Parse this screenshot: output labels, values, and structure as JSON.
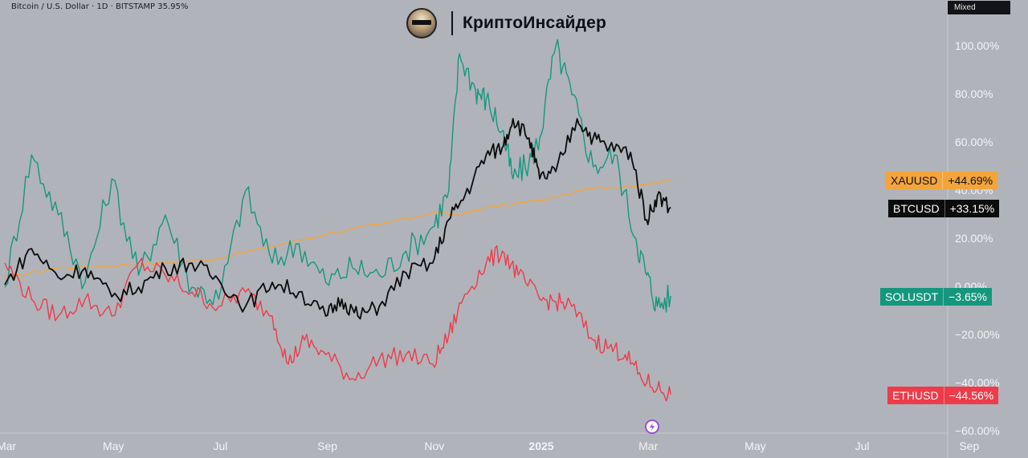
{
  "header": {
    "symbol_info": "Bitcoin / U.S. Dollar · 1D · BITSTAMP  35.95%",
    "scale_mode": "Mixed"
  },
  "brand": {
    "name": "КриптоИнсайдер",
    "logo_icon": "investor-portrait-logo-icon"
  },
  "colors": {
    "background": "#b1b3ba",
    "XAUUSD": "#f3a43b",
    "BTCUSD": "#0b0b0b",
    "SOLUSDT": "#15977e",
    "ETHUSD": "#ee3b49"
  },
  "chart_data": {
    "type": "line",
    "x_tick_labels": [
      "Mar",
      "May",
      "Jul",
      "Sep",
      "Nov",
      "2025",
      "Mar",
      "May",
      "Jul",
      "Sep"
    ],
    "y_tick_labels": [
      "100.00%",
      "80.00%",
      "60.00%",
      "40.00%",
      "20.00%",
      "0.00%",
      "−20.00%",
      "−40.00%",
      "−60.00%"
    ],
    "ylim": [
      -60,
      110
    ],
    "grid": false,
    "x_units": "months from 2024-03-01",
    "series": [
      {
        "name": "XAUUSD",
        "last_label": "+44.69%",
        "points": [
          [
            0,
            4
          ],
          [
            1,
            8
          ],
          [
            2,
            9
          ],
          [
            3,
            10
          ],
          [
            4,
            12
          ],
          [
            5,
            17
          ],
          [
            6,
            22
          ],
          [
            7,
            26
          ],
          [
            8,
            31
          ],
          [
            8.5,
            30
          ],
          [
            9,
            33
          ],
          [
            10,
            36
          ],
          [
            11,
            41
          ],
          [
            12,
            43
          ],
          [
            12.45,
            44.69
          ]
        ]
      },
      {
        "name": "BTCUSD",
        "last_label": "+33.15%",
        "points": [
          [
            0,
            1
          ],
          [
            0.5,
            16
          ],
          [
            1,
            4
          ],
          [
            1.5,
            8
          ],
          [
            2,
            -4
          ],
          [
            2.5,
            0
          ],
          [
            3,
            8
          ],
          [
            3.5,
            10
          ],
          [
            4,
            3
          ],
          [
            4.5,
            -8
          ],
          [
            5,
            2
          ],
          [
            5.5,
            -2
          ],
          [
            6,
            -12
          ],
          [
            6.3,
            -5
          ],
          [
            6.6,
            -12
          ],
          [
            7,
            -8
          ],
          [
            7.5,
            6
          ],
          [
            8,
            10
          ],
          [
            8.3,
            28
          ],
          [
            8.6,
            38
          ],
          [
            9,
            55
          ],
          [
            9.3,
            58
          ],
          [
            9.5,
            70
          ],
          [
            9.8,
            62
          ],
          [
            10,
            45
          ],
          [
            10.3,
            48
          ],
          [
            10.7,
            70
          ],
          [
            11,
            62
          ],
          [
            11.3,
            58
          ],
          [
            11.7,
            56
          ],
          [
            12,
            28
          ],
          [
            12.2,
            38
          ],
          [
            12.45,
            33.15
          ]
        ]
      },
      {
        "name": "SOLUSDT",
        "last_label": "−3.65%",
        "points": [
          [
            0,
            0
          ],
          [
            0.5,
            55
          ],
          [
            1,
            30
          ],
          [
            1.5,
            2
          ],
          [
            2,
            45
          ],
          [
            2.5,
            5
          ],
          [
            3,
            30
          ],
          [
            3.5,
            0
          ],
          [
            4,
            -5
          ],
          [
            4.5,
            40
          ],
          [
            5,
            10
          ],
          [
            5.5,
            18
          ],
          [
            6,
            2
          ],
          [
            6.5,
            8
          ],
          [
            7,
            5
          ],
          [
            7.5,
            15
          ],
          [
            8,
            25
          ],
          [
            8.3,
            40
          ],
          [
            8.5,
            97
          ],
          [
            8.8,
            82
          ],
          [
            9,
            78
          ],
          [
            9.3,
            65
          ],
          [
            9.5,
            45
          ],
          [
            9.8,
            52
          ],
          [
            10,
            62
          ],
          [
            10.3,
            100
          ],
          [
            10.6,
            80
          ],
          [
            11,
            50
          ],
          [
            11.4,
            55
          ],
          [
            11.8,
            20
          ],
          [
            12,
            5
          ],
          [
            12.2,
            -8
          ],
          [
            12.45,
            -3.65
          ]
        ]
      },
      {
        "name": "ETHUSD",
        "last_label": "−44.56%",
        "points": [
          [
            0,
            10
          ],
          [
            0.5,
            -5
          ],
          [
            1,
            -12
          ],
          [
            1.5,
            -5
          ],
          [
            2,
            -12
          ],
          [
            2.5,
            10
          ],
          [
            3,
            5
          ],
          [
            3.5,
            -2
          ],
          [
            4,
            -8
          ],
          [
            4.5,
            -2
          ],
          [
            5,
            -12
          ],
          [
            5.3,
            -32
          ],
          [
            5.6,
            -22
          ],
          [
            6,
            -28
          ],
          [
            6.5,
            -38
          ],
          [
            7,
            -30
          ],
          [
            7.5,
            -28
          ],
          [
            8,
            -32
          ],
          [
            8.3,
            -20
          ],
          [
            8.6,
            -3
          ],
          [
            9,
            10
          ],
          [
            9.3,
            15
          ],
          [
            9.6,
            5
          ],
          [
            10,
            -5
          ],
          [
            10.3,
            -6
          ],
          [
            10.6,
            -8
          ],
          [
            11,
            -22
          ],
          [
            11.3,
            -25
          ],
          [
            11.6,
            -28
          ],
          [
            11.9,
            -38
          ],
          [
            12.2,
            -42
          ],
          [
            12.45,
            -44.56
          ]
        ]
      }
    ]
  }
}
